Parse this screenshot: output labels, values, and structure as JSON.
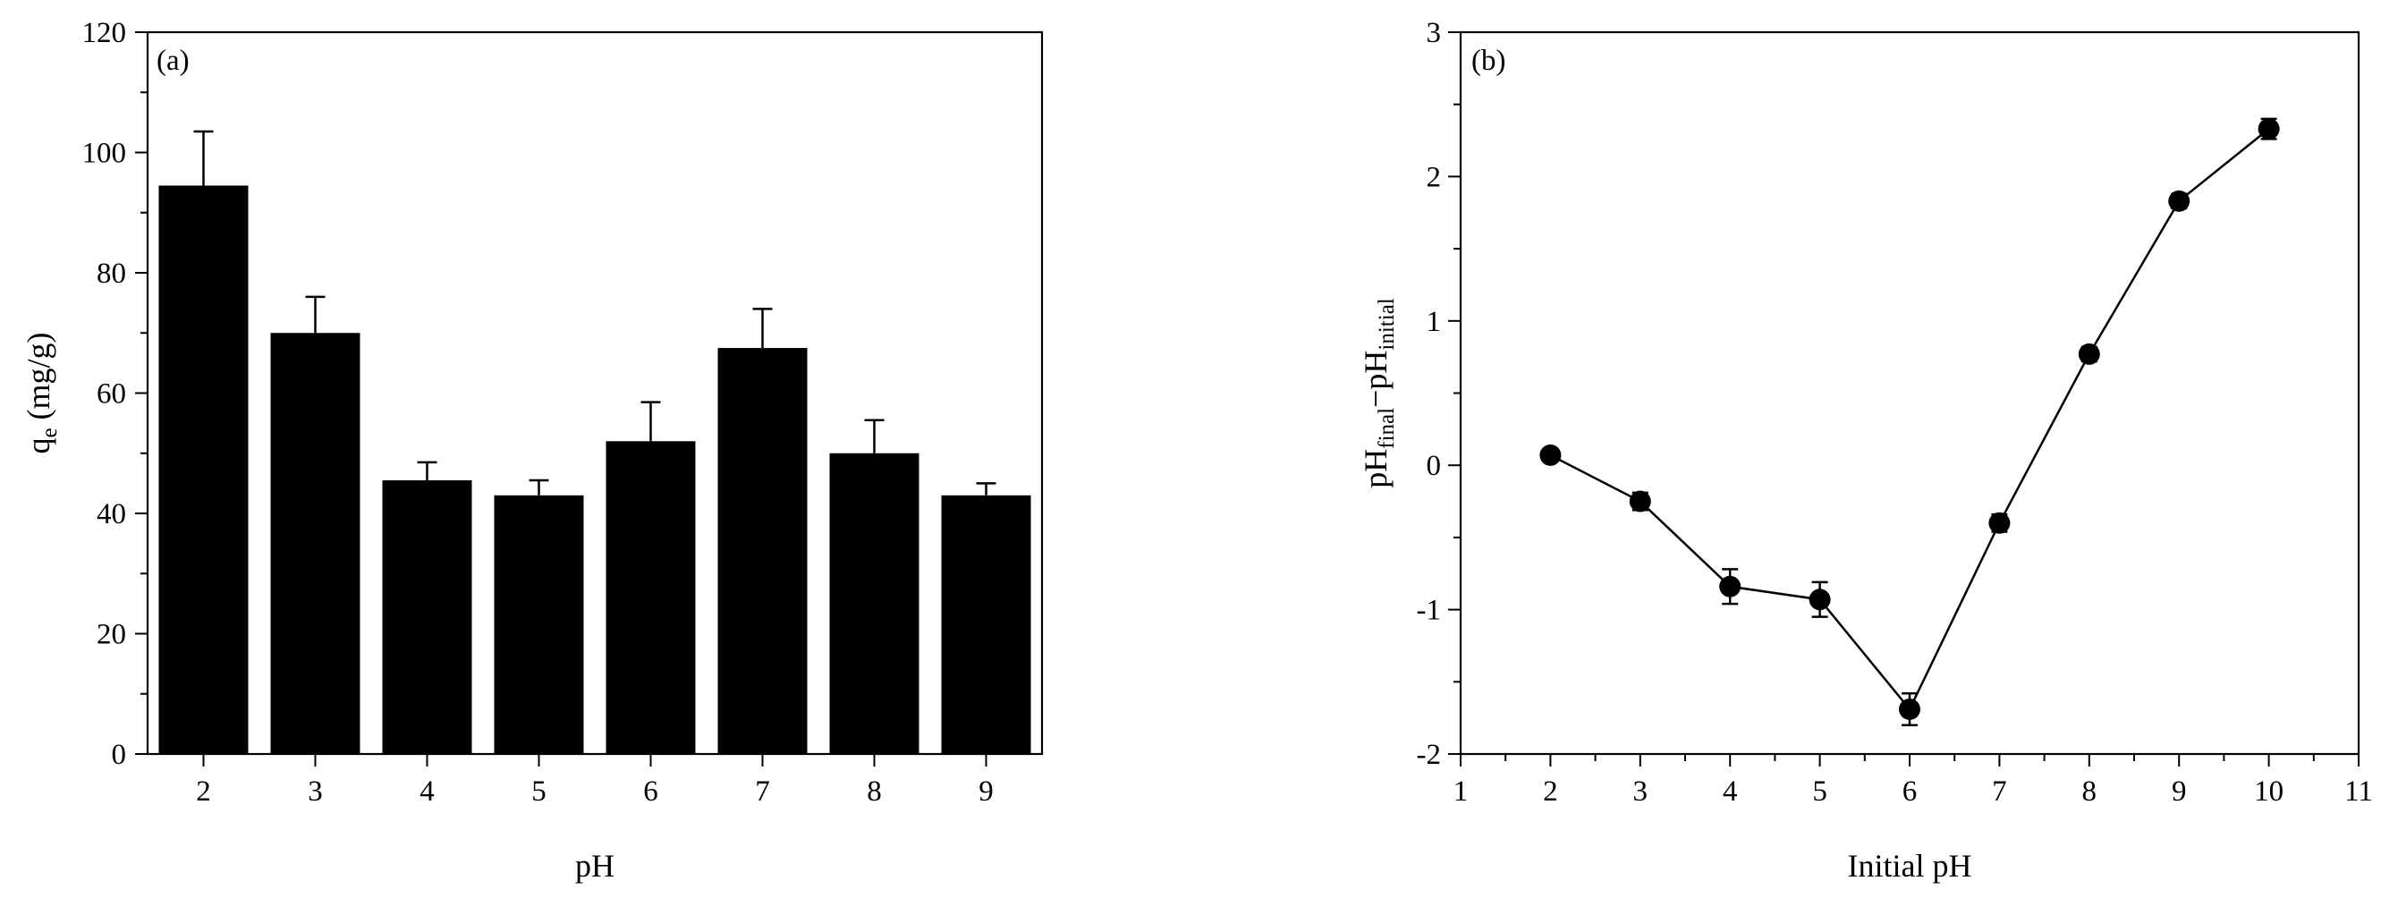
{
  "chart_data": [
    {
      "type": "bar",
      "panel_label": "(a)",
      "categories": [
        "2",
        "3",
        "4",
        "5",
        "6",
        "7",
        "8",
        "9"
      ],
      "values": [
        94.5,
        70,
        45.5,
        43,
        52,
        67.5,
        50,
        43
      ],
      "errors": [
        9,
        6,
        3,
        2.5,
        6.5,
        6.5,
        5.5,
        2
      ],
      "xlabel": "pH",
      "ylabel_main": "q",
      "ylabel_sub": "e",
      "ylabel_rest": " (mg/g)",
      "ylim": [
        0,
        120
      ],
      "yticks": [
        "0",
        "20",
        "40",
        "60",
        "80",
        "100",
        "120"
      ],
      "grid": false,
      "bar_color": "#000000"
    },
    {
      "type": "line",
      "panel_label": "(b)",
      "x": [
        2,
        3,
        4,
        5,
        6,
        7,
        8,
        9,
        10
      ],
      "series": [
        {
          "values": [
            0.07,
            -0.25,
            -0.84,
            -0.93,
            -1.69,
            -0.4,
            0.77,
            1.83,
            2.33
          ],
          "errors": [
            0.04,
            0.06,
            0.12,
            0.12,
            0.11,
            0.06,
            0.05,
            0.05,
            0.07
          ]
        }
      ],
      "xlabel": "Initial pH",
      "ylabel_parts": [
        {
          "text": "pH",
          "sub": "final"
        },
        {
          "text": "−pH",
          "sub": "initial"
        }
      ],
      "xlim": [
        1,
        11
      ],
      "ylim": [
        -2,
        3
      ],
      "xticks": [
        "1",
        "2",
        "3",
        "4",
        "5",
        "6",
        "7",
        "8",
        "9",
        "10",
        "11"
      ],
      "yticks": [
        "-2",
        "-1",
        "0",
        "1",
        "2",
        "3"
      ],
      "grid": false,
      "marker": "filled-circle",
      "color": "#000000"
    }
  ]
}
